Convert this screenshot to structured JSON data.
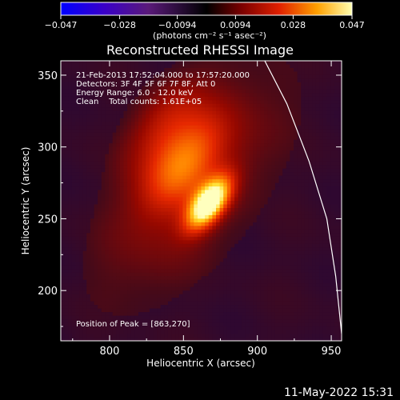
{
  "chart_data": {
    "type": "heatmap",
    "title": "Reconstructed RHESSI Image",
    "xlabel": "Heliocentric X (arcsec)",
    "ylabel": "Heliocentric Y (arcsec)",
    "xlim": [
      767,
      957
    ],
    "ylim": [
      165,
      360
    ],
    "xticks": [
      "800",
      "850",
      "900",
      "950"
    ],
    "yticks": [
      "200",
      "250",
      "300",
      "350"
    ],
    "colorbar": {
      "ticks": [
        "−0.047",
        "−0.028",
        "−0.0094",
        "0.0094",
        "0.028",
        "0.047"
      ],
      "range": [
        -0.047,
        0.047
      ],
      "unit_label": "(photons cm⁻² s⁻¹ asec⁻²)"
    },
    "annotations": {
      "time": "21-Feb-2013 17:52:04.000 to 17:57:20.000",
      "detectors": "Detectors: 3F 4F 5F 6F 7F 8F, Att 0",
      "energy": "Energy Range: 6.0 - 12.0 keV",
      "clean": "Clean    Total counts: 1.61E+05",
      "peak": "Position of Peak = [863,270]"
    },
    "peak": [
      863,
      270
    ],
    "limb_curve": [
      [
        905,
        360
      ],
      [
        920,
        330
      ],
      [
        935,
        290
      ],
      [
        947,
        250
      ],
      [
        953,
        210
      ],
      [
        957,
        170
      ]
    ],
    "sources": [
      {
        "x": 866,
        "y": 262,
        "amp": 0.047
      },
      {
        "x": 848,
        "y": 290,
        "amp": 0.02
      },
      {
        "x": 835,
        "y": 320,
        "amp": 0.012
      }
    ]
  },
  "footer": {
    "datetime": "11-May-2022 15:31"
  }
}
